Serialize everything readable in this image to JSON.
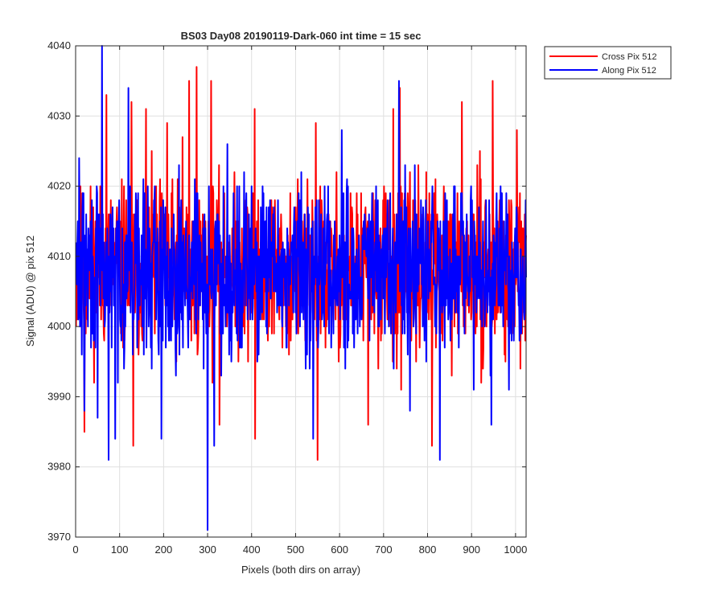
{
  "chart_data": {
    "type": "line",
    "title": "BS03 Day08 20190119-Dark-060 int time = 15 sec",
    "xlabel": "Pixels (both dirs on array)",
    "ylabel": "Signal (ADU) @ pix 512",
    "xlim": [
      0,
      1024
    ],
    "ylim": [
      3970,
      4040
    ],
    "xticks": [
      0,
      100,
      200,
      300,
      400,
      500,
      600,
      700,
      800,
      900,
      1000
    ],
    "yticks": [
      3970,
      3980,
      3990,
      4000,
      4010,
      4020,
      4030,
      4040
    ],
    "grid": true,
    "legend_position": "outside-top-right",
    "series": [
      {
        "name": "Cross Pix 512",
        "color": "#ff0000",
        "base": 4008,
        "spread": 6,
        "seed": 11,
        "x_start": 1,
        "x_end": 1024,
        "peaks": [
          {
            "x": 20,
            "y": 3985
          },
          {
            "x": 70,
            "y": 4033
          },
          {
            "x": 127,
            "y": 4032
          },
          {
            "x": 131,
            "y": 3983
          },
          {
            "x": 160,
            "y": 4031
          },
          {
            "x": 208,
            "y": 4029
          },
          {
            "x": 243,
            "y": 4027
          },
          {
            "x": 258,
            "y": 4035
          },
          {
            "x": 275,
            "y": 4037
          },
          {
            "x": 308,
            "y": 4035
          },
          {
            "x": 327,
            "y": 3986
          },
          {
            "x": 407,
            "y": 4031
          },
          {
            "x": 408,
            "y": 3984
          },
          {
            "x": 546,
            "y": 4029
          },
          {
            "x": 550,
            "y": 3981
          },
          {
            "x": 665,
            "y": 3986
          },
          {
            "x": 722,
            "y": 4031
          },
          {
            "x": 737,
            "y": 4034
          },
          {
            "x": 740,
            "y": 3991
          },
          {
            "x": 810,
            "y": 3983
          },
          {
            "x": 878,
            "y": 4032
          },
          {
            "x": 948,
            "y": 4035
          },
          {
            "x": 1003,
            "y": 4028
          }
        ]
      },
      {
        "name": "Along Pix 512",
        "color": "#0000ff",
        "base": 4008,
        "spread": 6,
        "seed": 29,
        "x_start": 1,
        "x_end": 1024,
        "peaks": [
          {
            "x": 8,
            "y": 4024
          },
          {
            "x": 20,
            "y": 3988
          },
          {
            "x": 50,
            "y": 3987
          },
          {
            "x": 60,
            "y": 4040
          },
          {
            "x": 75,
            "y": 3981
          },
          {
            "x": 90,
            "y": 3984
          },
          {
            "x": 120,
            "y": 4034
          },
          {
            "x": 195,
            "y": 3984
          },
          {
            "x": 300,
            "y": 3971
          },
          {
            "x": 315,
            "y": 3983
          },
          {
            "x": 345,
            "y": 4026
          },
          {
            "x": 540,
            "y": 3984
          },
          {
            "x": 605,
            "y": 4028
          },
          {
            "x": 735,
            "y": 4035
          },
          {
            "x": 760,
            "y": 3988
          },
          {
            "x": 828,
            "y": 3981
          },
          {
            "x": 905,
            "y": 3991
          },
          {
            "x": 945,
            "y": 3986
          },
          {
            "x": 985,
            "y": 3991
          }
        ]
      }
    ]
  }
}
